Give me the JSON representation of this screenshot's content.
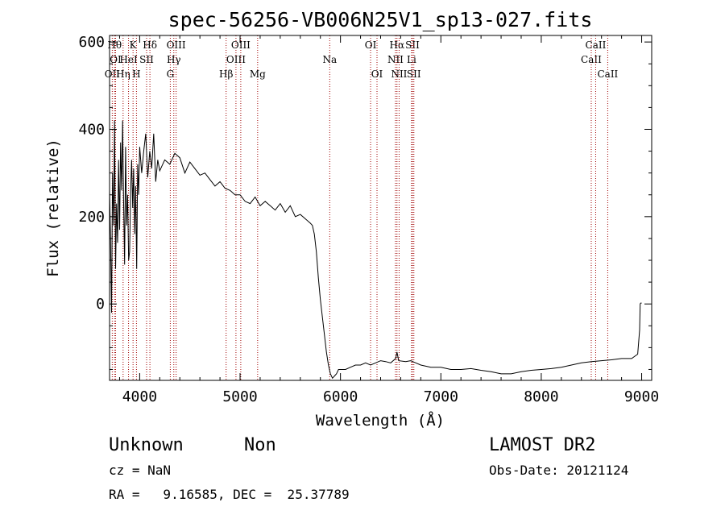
{
  "chart_data": {
    "type": "line",
    "title": "spec-56256-VB006N25V1_sp13-027.fits",
    "xlabel": "Wavelength (Å)",
    "ylabel": "Flux (relative)",
    "xlim": [
      3700,
      9100
    ],
    "ylim": [
      -175,
      615
    ],
    "xticks": [
      4000,
      5000,
      6000,
      7000,
      8000,
      9000
    ],
    "yticks": [
      0,
      200,
      400,
      600
    ],
    "grid": false,
    "series": [
      {
        "x": [
          3700,
          3710,
          3720,
          3730,
          3740,
          3750,
          3760,
          3770,
          3780,
          3790,
          3800,
          3810,
          3820,
          3830,
          3840,
          3850,
          3860,
          3870,
          3880,
          3890,
          3900,
          3910,
          3920,
          3930,
          3940,
          3950,
          3960,
          3970,
          3980,
          3990,
          4000,
          4020,
          4040,
          4060,
          4080,
          4100,
          4120,
          4140,
          4160,
          4180,
          4200,
          4250,
          4300,
          4350,
          4400,
          4450,
          4500,
          4550,
          4600,
          4650,
          4700,
          4750,
          4800,
          4850,
          4900,
          4950,
          5000,
          5050,
          5100,
          5150,
          5200,
          5250,
          5300,
          5350,
          5400,
          5450,
          5500,
          5550,
          5600,
          5650,
          5700,
          5720,
          5740,
          5760,
          5780,
          5800,
          5820,
          5840,
          5860,
          5880,
          5900,
          5920,
          5940,
          5960,
          5980,
          6000,
          6050,
          6100,
          6150,
          6200,
          6250,
          6300,
          6350,
          6400,
          6450,
          6500,
          6550,
          6563,
          6580,
          6650,
          6700,
          6750,
          6800,
          6900,
          7000,
          7100,
          7200,
          7300,
          7400,
          7500,
          7600,
          7700,
          7800,
          7900,
          8000,
          8100,
          8200,
          8300,
          8400,
          8500,
          8600,
          8700,
          8800,
          8900,
          8960,
          8980,
          8985,
          8990,
          9000
        ],
        "y": [
          260,
          150,
          -20,
          300,
          180,
          420,
          80,
          230,
          140,
          330,
          170,
          370,
          260,
          420,
          240,
          90,
          360,
          180,
          250,
          100,
          120,
          260,
          330,
          220,
          310,
          160,
          270,
          80,
          320,
          250,
          360,
          300,
          350,
          390,
          290,
          350,
          310,
          390,
          280,
          330,
          305,
          330,
          320,
          345,
          335,
          300,
          325,
          310,
          295,
          300,
          285,
          270,
          280,
          265,
          260,
          250,
          250,
          235,
          230,
          245,
          225,
          235,
          225,
          215,
          230,
          210,
          225,
          200,
          205,
          195,
          185,
          180,
          160,
          120,
          60,
          10,
          -30,
          -70,
          -110,
          -140,
          -160,
          -170,
          -165,
          -160,
          -150,
          -150,
          -150,
          -145,
          -140,
          -140,
          -135,
          -140,
          -135,
          -130,
          -132,
          -135,
          -125,
          -110,
          -130,
          -132,
          -130,
          -135,
          -140,
          -145,
          -145,
          -150,
          -150,
          -148,
          -152,
          -155,
          -160,
          -160,
          -155,
          -152,
          -150,
          -148,
          -145,
          -140,
          -135,
          -132,
          -130,
          -128,
          -125,
          -125,
          -115,
          -60,
          0,
          2,
          2
        ]
      }
    ],
    "line_markers": [
      {
        "label": "OII",
        "wavelength": 3727,
        "row": 2
      },
      {
        "label": "Hθ",
        "wavelength": 3750,
        "row": 0
      },
      {
        "label": "OI",
        "wavelength": 3760,
        "row": 1
      },
      {
        "label": "Hη",
        "wavelength": 3835,
        "row": 2
      },
      {
        "label": "HeI",
        "wavelength": 3889,
        "row": 1
      },
      {
        "label": "K",
        "wavelength": 3934,
        "row": 0
      },
      {
        "label": "H",
        "wavelength": 3968,
        "row": 2
      },
      {
        "label": "SII",
        "wavelength": 4069,
        "row": 1
      },
      {
        "label": "Hδ",
        "wavelength": 4102,
        "row": 0
      },
      {
        "label": "G",
        "wavelength": 4305,
        "row": 2
      },
      {
        "label": "Hγ",
        "wavelength": 4340,
        "row": 1
      },
      {
        "label": "OIII",
        "wavelength": 4363,
        "row": 0
      },
      {
        "label": "Hβ",
        "wavelength": 4861,
        "row": 2
      },
      {
        "label": "OIII",
        "wavelength": 4959,
        "row": 1
      },
      {
        "label": "OIII",
        "wavelength": 5007,
        "row": 0
      },
      {
        "label": "Mg",
        "wavelength": 5175,
        "row": 2
      },
      {
        "label": "Na",
        "wavelength": 5893,
        "row": 1
      },
      {
        "label": "OI",
        "wavelength": 6300,
        "row": 0
      },
      {
        "label": "OI",
        "wavelength": 6364,
        "row": 2
      },
      {
        "label": "NII",
        "wavelength": 6548,
        "row": 1
      },
      {
        "label": "Hα",
        "wavelength": 6563,
        "row": 0
      },
      {
        "label": "NII",
        "wavelength": 6584,
        "row": 2
      },
      {
        "label": "Li",
        "wavelength": 6708,
        "row": 1
      },
      {
        "label": "SII",
        "wavelength": 6717,
        "row": 0
      },
      {
        "label": "SII",
        "wavelength": 6731,
        "row": 2
      },
      {
        "label": "CaII",
        "wavelength": 8498,
        "row": 1
      },
      {
        "label": "CaII",
        "wavelength": 8542,
        "row": 0
      },
      {
        "label": "CaII",
        "wavelength": 8662,
        "row": 2
      }
    ]
  },
  "info": {
    "class": "Unknown",
    "subclass": "Non",
    "survey": "LAMOST DR2",
    "cz": "cz = NaN",
    "obs_date": "Obs-Date: 20121124",
    "radec": "RA =   9.16585, DEC =  25.37789"
  },
  "colors": {
    "axes": "#000000",
    "spectrum": "#000000",
    "line_marker": "#a00000",
    "background": "#ffffff"
  }
}
